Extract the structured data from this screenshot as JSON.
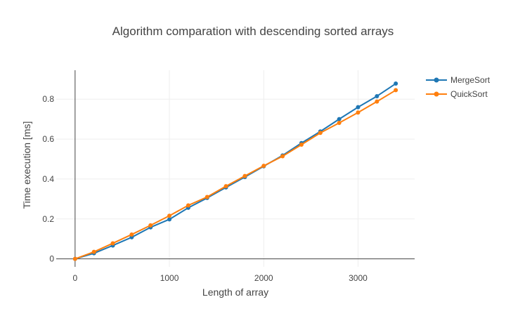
{
  "chart_data": {
    "type": "line",
    "title": "Algorithm comparation with descending sorted arrays",
    "xlabel": "Length of array",
    "ylabel": "Time execution [ms]",
    "xlim": [
      -200,
      3600
    ],
    "ylim": [
      -0.04,
      0.945
    ],
    "x_ticks": [
      0,
      1000,
      2000,
      3000
    ],
    "x_tick_labels": [
      "0",
      "1000",
      "2000",
      "3000"
    ],
    "y_ticks": [
      0,
      0.2,
      0.4,
      0.6,
      0.8
    ],
    "y_tick_labels": [
      "0",
      "0.2",
      "0.4",
      "0.6",
      "0.8"
    ],
    "grid": true,
    "legend_position": "top-right",
    "x": [
      0,
      200,
      400,
      600,
      800,
      1000,
      1200,
      1400,
      1600,
      1800,
      2000,
      2200,
      2400,
      2600,
      2800,
      3000,
      3200,
      3400
    ],
    "series": [
      {
        "name": "MergeSort",
        "color": "#1f77b4",
        "values": [
          0,
          0.028,
          0.067,
          0.108,
          0.158,
          0.198,
          0.256,
          0.305,
          0.358,
          0.41,
          0.464,
          0.518,
          0.58,
          0.638,
          0.7,
          0.76,
          0.815,
          0.878
        ]
      },
      {
        "name": "QuickSort",
        "color": "#ff7f0e",
        "values": [
          0,
          0.035,
          0.078,
          0.122,
          0.168,
          0.216,
          0.268,
          0.31,
          0.364,
          0.415,
          0.466,
          0.514,
          0.572,
          0.631,
          0.681,
          0.733,
          0.788,
          0.845
        ]
      }
    ]
  }
}
